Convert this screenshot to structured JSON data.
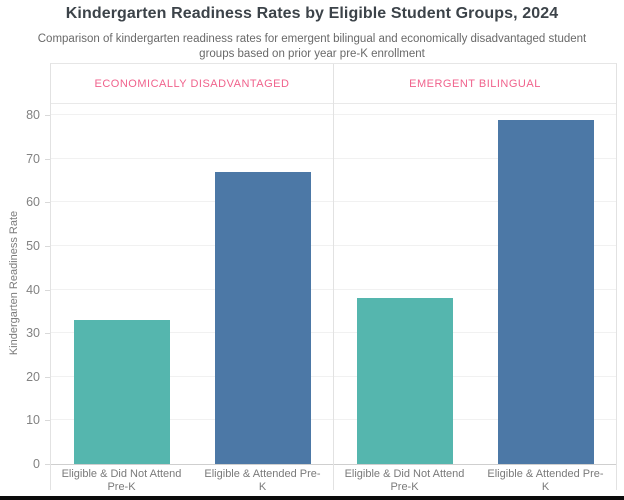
{
  "chart_data": {
    "type": "bar",
    "title": "Kindergarten Readiness Rates by Eligible Student Groups, 2024",
    "subtitle": "Comparison of kindergarten readiness rates for emergent bilingual and economically disadvantaged student groups based on prior year pre-K enrollment",
    "ylabel": "Kindergarten Readiness Rate",
    "ylim": [
      0,
      83
    ],
    "yticks": [
      0,
      10,
      20,
      30,
      40,
      50,
      60,
      70,
      80
    ],
    "grid": true,
    "legend_position": "none",
    "panels": [
      {
        "label": "ECONOMICALLY DISADVANTAGED",
        "categories": [
          "Eligible & Did Not Attend Pre-K",
          "Eligible & Attended Pre-K"
        ],
        "values": [
          33,
          67
        ],
        "bar_colors": [
          "#55B6AE",
          "#4C78A6"
        ]
      },
      {
        "label": "EMERGENT BILINGUAL",
        "categories": [
          "Eligible & Did Not Attend Pre-K",
          "Eligible & Attended Pre-K"
        ],
        "values": [
          38,
          79
        ],
        "bar_colors": [
          "#55B6AE",
          "#4C78A6"
        ]
      }
    ],
    "colors": {
      "panel_label": "#F0628C",
      "bar_teal": "#55B6AE",
      "bar_blue": "#4C78A6",
      "title_text": "#3C4349",
      "subtitle_text": "#696969",
      "axis_text": "#828282"
    }
  }
}
